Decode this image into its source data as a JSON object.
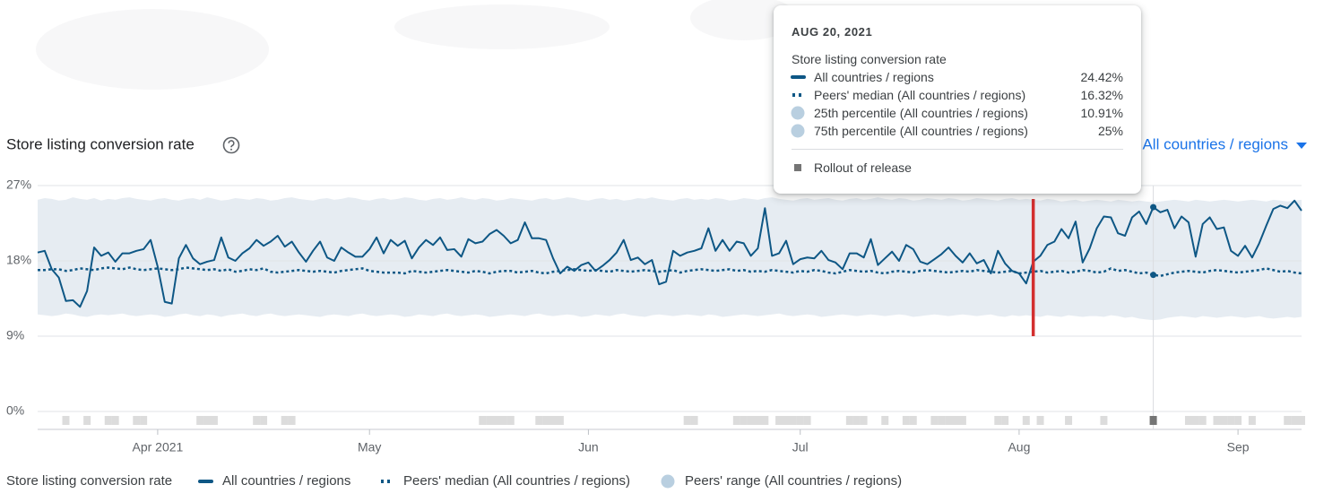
{
  "chart_data": {
    "type": "line",
    "title": "Store listing conversion rate",
    "filter": "All countries / regions",
    "legend_title": "Store listing conversion rate",
    "xlim": [
      0,
      179
    ],
    "xticks": [
      {
        "value": 17,
        "label": "Apr 2021"
      },
      {
        "value": 47,
        "label": "May"
      },
      {
        "value": 78,
        "label": "Jun"
      },
      {
        "value": 108,
        "label": "Jul"
      },
      {
        "value": 139,
        "label": "Aug"
      },
      {
        "value": 170,
        "label": "Sep"
      }
    ],
    "ylim": [
      0,
      27
    ],
    "yticks": [
      {
        "value": 0,
        "label": "0%"
      },
      {
        "value": 9,
        "label": "9%"
      },
      {
        "value": 18,
        "label": "18%"
      },
      {
        "value": 27,
        "label": "27%"
      }
    ],
    "grid": true,
    "series": [
      {
        "name": "All countries / regions",
        "color": "#0e5785",
        "values": [
          19.0,
          19.2,
          17.0,
          16.0,
          13.2,
          13.3,
          12.5,
          14.4,
          19.6,
          18.6,
          19.0,
          17.9,
          18.9,
          18.9,
          19.2,
          19.4,
          20.5,
          17.3,
          13.1,
          12.9,
          18.3,
          19.9,
          18.3,
          17.6,
          17.9,
          18.1,
          20.8,
          18.4,
          18.0,
          18.9,
          19.5,
          20.5,
          19.8,
          20.3,
          21.0,
          19.7,
          20.3,
          19.0,
          17.9,
          19.2,
          20.3,
          18.4,
          18.0,
          19.6,
          19.0,
          18.5,
          18.5,
          19.4,
          20.8,
          18.9,
          20.5,
          19.8,
          20.4,
          18.3,
          19.6,
          20.5,
          19.9,
          20.8,
          19.3,
          19.4,
          18.5,
          20.6,
          20.1,
          20.3,
          21.2,
          21.7,
          21.0,
          20.1,
          20.5,
          22.6,
          20.7,
          20.7,
          20.5,
          18.3,
          16.5,
          17.3,
          16.8,
          17.5,
          17.8,
          16.8,
          17.4,
          18.1,
          19.0,
          20.5,
          18.1,
          18.4,
          17.6,
          18.1,
          15.2,
          15.5,
          19.2,
          18.6,
          19.0,
          19.2,
          19.5,
          21.9,
          19.2,
          20.5,
          19.2,
          20.3,
          20.1,
          18.6,
          19.5,
          24.3,
          18.6,
          18.9,
          20.4,
          17.6,
          18.2,
          18.4,
          18.3,
          19.2,
          18.1,
          17.8,
          17.0,
          18.9,
          18.9,
          18.4,
          20.6,
          17.5,
          18.3,
          19.1,
          18.0,
          19.9,
          19.4,
          17.9,
          17.6,
          18.2,
          18.8,
          19.6,
          18.6,
          17.8,
          18.9,
          17.7,
          18.1,
          16.5,
          19.2,
          17.7,
          16.8,
          16.5,
          15.3,
          17.9,
          18.6,
          19.9,
          20.3,
          21.8,
          20.7,
          22.7,
          17.8,
          19.5,
          21.9,
          23.3,
          23.2,
          21.3,
          21.0,
          23.2,
          23.9,
          22.4,
          24.42,
          23.8,
          24.1,
          21.9,
          23.3,
          22.6,
          18.5,
          22.4,
          23.2,
          21.8,
          22.0,
          19.2,
          18.6,
          19.8,
          18.4,
          20.1,
          22.2,
          24.2,
          24.6,
          24.3,
          25.2,
          24.0
        ]
      },
      {
        "name": "Peers' median (All countries / regions)",
        "color": "#0e5785",
        "values": [
          16.9,
          16.9,
          17.0,
          17.0,
          16.8,
          16.9,
          17.1,
          17.0,
          16.9,
          17.1,
          17.2,
          17.1,
          17.0,
          17.2,
          17.0,
          16.9,
          17.0,
          17.1,
          17.0,
          16.9,
          17.0,
          17.2,
          17.1,
          17.0,
          16.9,
          17.0,
          16.8,
          17.0,
          16.7,
          16.8,
          17.0,
          16.9,
          17.1,
          16.7,
          16.6,
          16.7,
          16.8,
          16.9,
          16.8,
          16.7,
          16.8,
          16.7,
          16.6,
          16.8,
          16.9,
          17.0,
          17.1,
          16.8,
          16.7,
          16.6,
          16.6,
          16.6,
          16.5,
          16.8,
          16.7,
          16.6,
          16.7,
          16.8,
          16.9,
          16.8,
          16.7,
          16.6,
          16.8,
          16.7,
          16.5,
          16.7,
          16.8,
          16.8,
          16.6,
          16.7,
          16.8,
          16.6,
          16.5,
          16.7,
          16.8,
          16.9,
          17.0,
          16.9,
          16.8,
          16.9,
          16.8,
          16.7,
          16.9,
          16.8,
          16.7,
          16.8,
          16.9,
          16.8,
          16.7,
          16.8,
          16.9,
          16.6,
          16.8,
          16.9,
          17.0,
          16.9,
          16.8,
          16.9,
          17.0,
          16.8,
          16.9,
          16.7,
          16.8,
          16.7,
          16.9,
          16.8,
          16.7,
          16.6,
          16.8,
          16.7,
          16.9,
          16.8,
          16.6,
          16.5,
          16.7,
          16.9,
          16.8,
          16.7,
          16.8,
          16.6,
          16.5,
          16.7,
          16.8,
          16.7,
          16.6,
          16.8,
          16.9,
          16.8,
          16.7,
          16.6,
          16.7,
          16.8,
          16.7,
          16.9,
          16.8,
          16.7,
          16.6,
          16.7,
          16.8,
          16.5,
          16.6,
          16.7,
          16.8,
          16.6,
          16.7,
          16.8,
          16.6,
          16.7,
          16.9,
          16.8,
          16.6,
          16.7,
          17.1,
          16.8,
          16.9,
          16.7,
          16.5,
          16.6,
          16.32,
          16.2,
          16.4,
          16.6,
          16.7,
          16.8,
          16.7,
          16.6,
          16.8,
          16.9,
          16.8,
          16.7,
          16.6,
          16.7,
          16.8,
          16.9,
          17.1,
          16.9,
          16.7,
          16.8,
          16.6,
          16.5
        ]
      },
      {
        "name": "Peers' range (All countries / regions)",
        "color": "#e6ecf2",
        "lower": [
          11.6,
          11.5,
          11.4,
          11.5,
          11.7,
          11.6,
          11.4,
          11.3,
          11.5,
          11.6,
          11.5,
          11.6,
          11.7,
          11.5,
          11.4,
          11.5,
          11.6,
          11.5,
          11.3,
          11.4,
          11.6,
          11.7,
          11.5,
          11.4,
          11.6,
          11.5,
          11.3,
          11.5,
          11.6,
          11.7,
          11.5,
          11.4,
          11.6,
          11.7,
          11.5,
          11.4,
          11.5,
          11.6,
          11.5,
          11.4,
          11.3,
          11.5,
          11.6,
          11.5,
          11.4,
          11.6,
          11.7,
          11.5,
          11.4,
          11.5,
          11.6,
          11.5,
          11.3,
          11.4,
          11.6,
          11.5,
          11.4,
          11.6,
          11.7,
          11.5,
          11.4,
          11.5,
          11.6,
          11.5,
          11.3,
          11.4,
          11.5,
          11.6,
          11.5,
          11.4,
          11.6,
          11.7,
          11.5,
          11.4,
          11.5,
          11.6,
          11.5,
          11.3,
          11.4,
          11.6,
          11.5,
          11.4,
          11.6,
          11.7,
          11.5,
          11.4,
          11.3,
          11.5,
          11.6,
          11.5,
          11.4,
          11.5,
          11.6,
          11.5,
          11.4,
          11.6,
          11.5,
          11.3,
          11.4,
          11.5,
          11.6,
          11.5,
          11.4,
          11.5,
          11.6,
          11.7,
          11.5,
          11.4,
          11.5,
          11.6,
          11.5,
          11.3,
          11.4,
          11.5,
          11.6,
          11.5,
          11.4,
          11.5,
          11.6,
          11.5,
          11.4,
          11.5,
          11.6,
          11.5,
          11.3,
          11.4,
          11.5,
          11.6,
          11.5,
          11.4,
          11.5,
          11.6,
          11.5,
          11.4,
          11.5,
          11.6,
          11.4,
          11.3,
          11.5,
          11.4,
          11.5,
          11.4,
          11.3,
          11.5,
          11.4,
          11.3,
          11.5,
          11.4,
          11.3,
          11.4,
          11.4,
          11.3,
          11.5,
          11.4,
          11.2,
          11.3,
          11.1,
          11.0,
          10.91,
          11.0,
          11.2,
          11.3,
          11.4,
          11.3,
          11.2,
          11.4,
          11.3,
          11.2,
          11.3,
          11.4,
          11.3,
          11.2,
          11.3,
          11.4,
          11.2,
          11.1,
          11.2,
          11.3,
          11.2,
          11.3
        ],
        "upper": [
          25.3,
          25.5,
          25.4,
          25.2,
          25.3,
          25.6,
          25.4,
          25.3,
          25.5,
          25.2,
          25.4,
          25.3,
          25.5,
          25.6,
          25.4,
          25.3,
          25.2,
          25.4,
          25.5,
          25.3,
          25.2,
          25.4,
          25.5,
          25.3,
          25.6,
          25.4,
          25.2,
          25.3,
          25.5,
          25.4,
          25.3,
          25.5,
          25.4,
          25.2,
          25.3,
          25.5,
          25.6,
          25.4,
          25.3,
          25.2,
          25.4,
          25.5,
          25.3,
          25.4,
          25.6,
          25.5,
          25.3,
          25.2,
          25.4,
          25.5,
          25.3,
          25.4,
          25.6,
          25.5,
          25.3,
          25.2,
          25.4,
          25.5,
          25.3,
          25.4,
          25.6,
          25.4,
          25.3,
          25.5,
          25.4,
          25.2,
          25.3,
          25.5,
          25.4,
          25.3,
          25.2,
          25.4,
          25.5,
          25.3,
          25.4,
          25.6,
          25.5,
          25.3,
          25.2,
          25.4,
          25.5,
          25.3,
          25.4,
          25.2,
          25.3,
          25.5,
          25.4,
          25.6,
          25.4,
          25.3,
          25.2,
          25.4,
          25.5,
          25.3,
          25.4,
          25.3,
          25.5,
          25.4,
          25.2,
          25.3,
          25.5,
          25.4,
          25.3,
          25.5,
          25.6,
          25.4,
          25.3,
          25.2,
          25.4,
          25.5,
          25.3,
          25.4,
          25.5,
          25.3,
          25.2,
          25.4,
          25.5,
          25.3,
          25.4,
          25.6,
          25.4,
          25.3,
          25.5,
          25.4,
          25.2,
          25.3,
          25.5,
          25.4,
          25.3,
          25.5,
          25.4,
          25.2,
          25.3,
          25.5,
          25.4,
          25.3,
          25.2,
          25.4,
          25.5,
          25.3,
          25.4,
          25.3,
          25.2,
          25.4,
          25.3,
          25.1,
          25.2,
          25.3,
          25.1,
          25.2,
          25.3,
          25.2,
          25.1,
          25.3,
          25.2,
          25.1,
          25.2,
          25.1,
          25,
          25.1,
          25.2,
          25.3,
          25.2,
          25.1,
          25.3,
          25.2,
          25.1,
          25.2,
          25.3,
          25.2,
          25.1,
          25.2,
          25.3,
          25.2,
          25.1,
          25.3,
          25.2,
          25.1,
          25.2,
          25.3
        ]
      }
    ],
    "rollouts": [
      4,
      7,
      10,
      11,
      14,
      15,
      23,
      24,
      25,
      31,
      32,
      35,
      36,
      63,
      64,
      65,
      66,
      67,
      71,
      72,
      73,
      74,
      92,
      93,
      99,
      100,
      101,
      102,
      103,
      105,
      106,
      107,
      108,
      109,
      115,
      116,
      117,
      120,
      123,
      124,
      127,
      128,
      129,
      130,
      131,
      136,
      137,
      140,
      142,
      146,
      151,
      158,
      163,
      164,
      165,
      167,
      168,
      169,
      170,
      172,
      177,
      178,
      179
    ],
    "rollout_selected": 141,
    "hover_index": 158
  },
  "tooltip": {
    "date": "AUG 20, 2021",
    "title": "Store listing conversion rate",
    "rows": [
      {
        "label": "All countries / regions",
        "value": "24.42%"
      },
      {
        "label": "Peers' median (All countries / regions)",
        "value": "16.32%"
      },
      {
        "label": "25th percentile (All countries / regions)",
        "value": "10.91%"
      },
      {
        "label": "75th percentile (All countries / regions)",
        "value": "25%"
      }
    ],
    "rollout": "Rollout of release"
  }
}
